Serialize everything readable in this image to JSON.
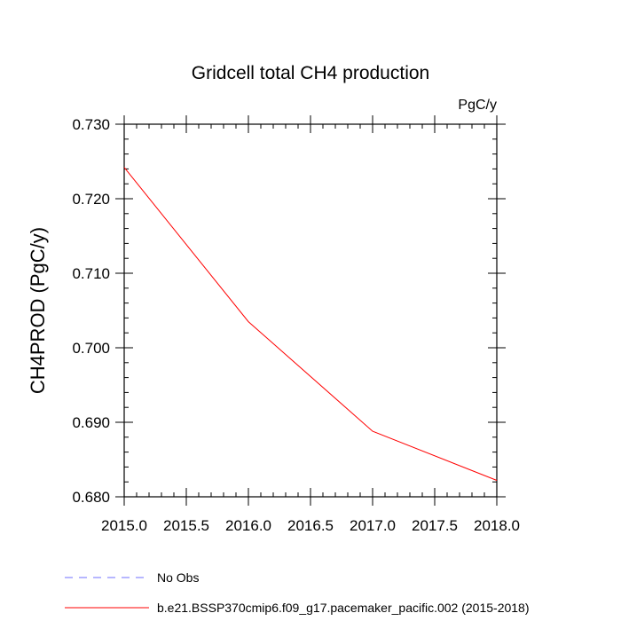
{
  "chart_data": {
    "type": "line",
    "title": "Gridcell total CH4 production",
    "units": "PgC/y",
    "ylabel": "CH4PROD  (PgC/y)",
    "xlabel": "",
    "xlim": [
      2015.0,
      2018.0
    ],
    "ylim": [
      0.68,
      0.73
    ],
    "x_ticks": [
      "2015.0",
      "2015.5",
      "2016.0",
      "2016.5",
      "2017.0",
      "2017.5",
      "2018.0"
    ],
    "y_ticks": [
      "0.680",
      "0.690",
      "0.700",
      "0.710",
      "0.720",
      "0.730"
    ],
    "series": [
      {
        "name": "b.e21.BSSP370cmip6.f09_g17.pacemaker_pacific.002 (2015-2018)",
        "color": "#ff0000",
        "style": "solid",
        "x": [
          2015.0,
          2016.0,
          2017.0,
          2018.0
        ],
        "y": [
          0.7242,
          0.7035,
          0.6888,
          0.6822
        ]
      }
    ],
    "legend": [
      {
        "label": "No Obs",
        "color": "#6f6fff",
        "style": "dashed"
      },
      {
        "label": "b.e21.BSSP370cmip6.f09_g17.pacemaker_pacific.002 (2015-2018)",
        "color": "#ff0000",
        "style": "solid"
      }
    ],
    "legend_position": "bottom-left",
    "grid": false
  }
}
